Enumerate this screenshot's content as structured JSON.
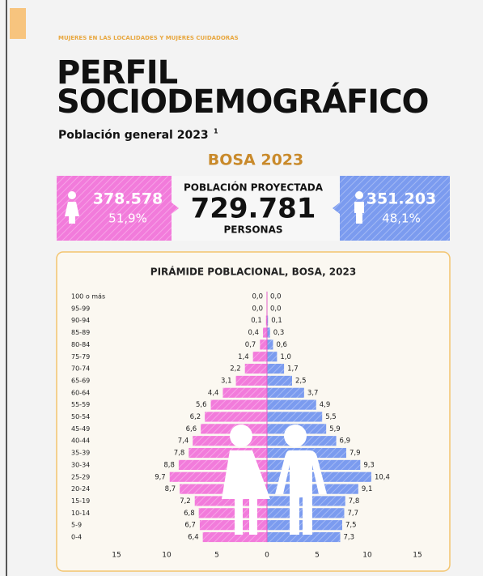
{
  "header": {
    "kicker": "MUJERES EN LAS LOCALIDADES Y MUJERES CUIDADORAS",
    "title_line1": "PERFIL",
    "title_line2": "SOCIODEMOGRÁFICO",
    "subtitle": "Población general 2023",
    "footnote_mark": "1",
    "locality": "BOSA 2023"
  },
  "summary": {
    "women": "378.578",
    "women_pct": "51,9%",
    "center_label": "POBLACIÓN PROYECTADA",
    "total": "729.781",
    "unit": "PERSONAS",
    "men": "351.203",
    "men_pct": "48,1%"
  },
  "chart_data": {
    "type": "pyramid",
    "title": "PIRÁMIDE POBLACIONAL, BOSA, 2023",
    "categories": [
      "100 o más",
      "95-99",
      "90-94",
      "85-89",
      "80-84",
      "75-79",
      "70-74",
      "65-69",
      "60-64",
      "55-59",
      "50-54",
      "45-49",
      "40-44",
      "35-39",
      "30-34",
      "25-29",
      "20-24",
      "15-19",
      "10-14",
      "5-9",
      "0-4"
    ],
    "series": [
      {
        "name": "Mujeres",
        "side": "left",
        "color": "#f27bdb",
        "values": [
          0.0,
          0.0,
          0.1,
          0.4,
          0.7,
          1.4,
          2.2,
          3.1,
          4.4,
          5.6,
          6.2,
          6.6,
          7.4,
          7.8,
          8.8,
          9.7,
          8.7,
          7.2,
          6.8,
          6.7,
          6.4
        ],
        "value_labels": [
          "0,0",
          "0,0",
          "0,1",
          "0,4",
          "0,7",
          "1,4",
          "2,2",
          "3,1",
          "4,4",
          "5,6",
          "6,2",
          "6,6",
          "7,4",
          "7,8",
          "8,8",
          "9,7",
          "8,7",
          "7,2",
          "6,8",
          "6,7",
          "6,4"
        ]
      },
      {
        "name": "Hombres",
        "side": "right",
        "color": "#7b9bef",
        "values": [
          0.0,
          0.0,
          0.1,
          0.3,
          0.6,
          1.0,
          1.7,
          2.5,
          3.7,
          4.9,
          5.5,
          5.9,
          6.9,
          7.9,
          9.3,
          10.4,
          9.1,
          7.8,
          7.7,
          7.5,
          7.3
        ],
        "value_labels": [
          "0,0",
          "0,0",
          "0,1",
          "0,3",
          "0,6",
          "1,0",
          "1,7",
          "2,5",
          "3,7",
          "4,9",
          "5,5",
          "5,9",
          "6,9",
          "7,9",
          "9,3",
          "10,4",
          "9,1",
          "7,8",
          "7,7",
          "7,5",
          "7,3"
        ]
      }
    ],
    "xlim": [
      -15,
      15
    ],
    "xticks": [
      {
        "value": -15,
        "label": "15"
      },
      {
        "value": -10,
        "label": "10"
      },
      {
        "value": -5,
        "label": "5"
      },
      0,
      5,
      10,
      15
    ]
  }
}
